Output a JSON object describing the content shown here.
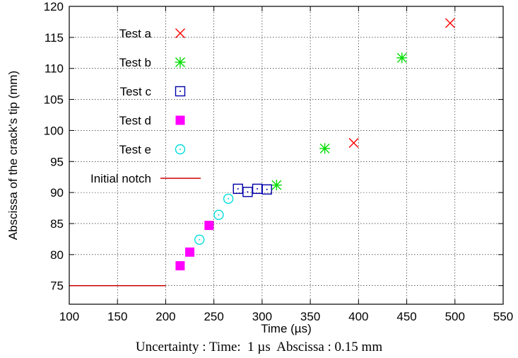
{
  "chart_data": {
    "type": "scatter",
    "xlabel": "Time (µs)",
    "ylabel": "Abscissa of the crack's tip (mm)",
    "xlim": [
      100,
      550
    ],
    "ylim": [
      72,
      120
    ],
    "xticks": [
      100,
      150,
      200,
      250,
      300,
      350,
      400,
      450,
      500,
      550
    ],
    "yticks": [
      75,
      80,
      85,
      90,
      95,
      100,
      105,
      110,
      115,
      120
    ],
    "grid": true,
    "legend_position": "top-left",
    "series": [
      {
        "name": "Test a",
        "marker": "x",
        "color": "#ff0000",
        "x": [
          395,
          495
        ],
        "y": [
          98,
          117.3
        ]
      },
      {
        "name": "Test b",
        "marker": "star",
        "color": "#00dd00",
        "x": [
          315,
          365,
          445
        ],
        "y": [
          91.2,
          97.1,
          111.7
        ]
      },
      {
        "name": "Test c",
        "marker": "open-square-dot",
        "color": "#0000aa",
        "x": [
          275,
          285,
          295,
          305
        ],
        "y": [
          90.6,
          90.1,
          90.6,
          90.5
        ]
      },
      {
        "name": "Test d",
        "marker": "filled-square",
        "color": "#ff00ff",
        "x": [
          215,
          225,
          245
        ],
        "y": [
          78.2,
          80.4,
          84.7
        ]
      },
      {
        "name": "Test e",
        "marker": "open-circle-dot",
        "color": "#00dddd",
        "x": [
          235,
          255,
          265
        ],
        "y": [
          82.4,
          86.4,
          89
        ]
      },
      {
        "name": "Initial notch",
        "marker": "line",
        "color": "#cc0000",
        "x": [
          100,
          200
        ],
        "y": [
          75,
          75
        ]
      }
    ]
  },
  "caption": "Uncertainty : Time:  1 µs  Abscissa : 0.15 mm"
}
